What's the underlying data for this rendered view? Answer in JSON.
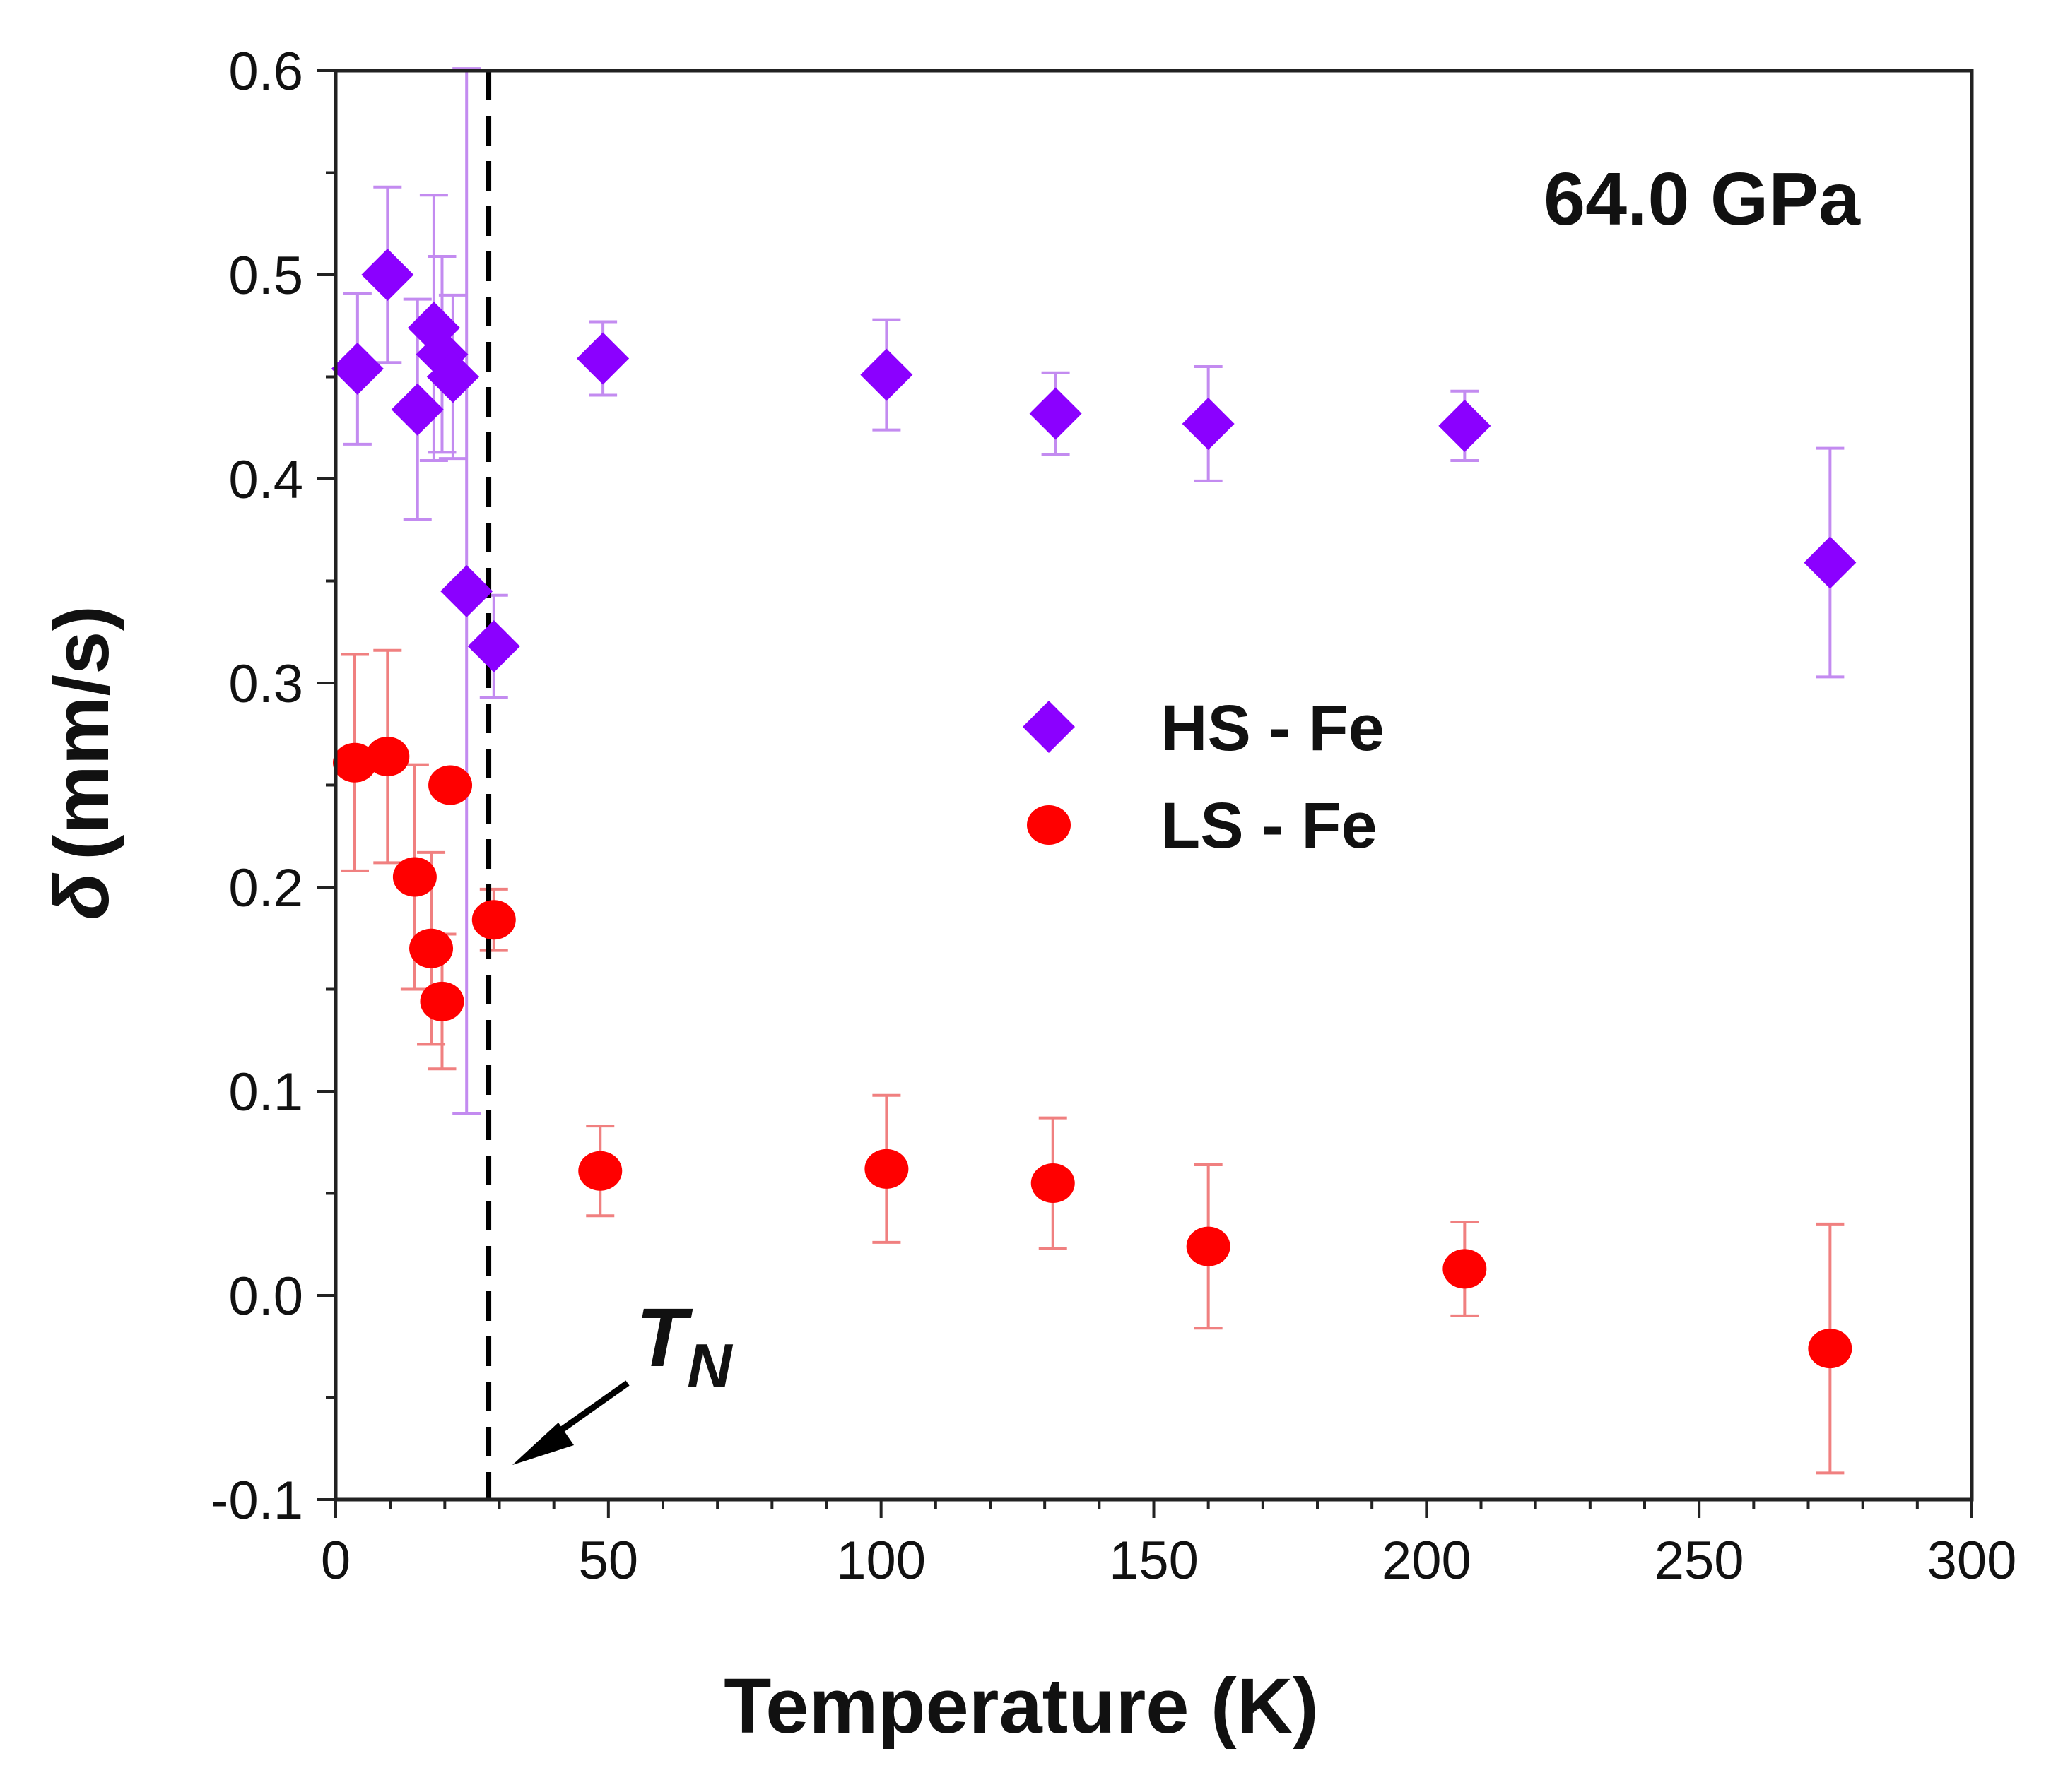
{
  "chart_data": {
    "type": "scatter",
    "title": "",
    "annotation": "64.0 GPa",
    "xlabel": "Temperature (K)",
    "ylabel_symbol": "δ",
    "ylabel_unit": "(mm/s)",
    "xlim": [
      0,
      300
    ],
    "ylim": [
      -0.1,
      0.6
    ],
    "xticks": [
      0,
      50,
      100,
      150,
      200,
      250,
      300
    ],
    "xtick_labels": [
      "0",
      "50",
      "100",
      "150",
      "200",
      "250",
      "300"
    ],
    "yticks": [
      -0.1,
      0.0,
      0.1,
      0.2,
      0.3,
      0.4,
      0.5,
      0.6
    ],
    "ytick_labels": [
      "-0.1",
      "0.0",
      "0.1",
      "0.2",
      "0.3",
      "0.4",
      "0.5",
      "0.6"
    ],
    "grid": false,
    "legend_position": "center",
    "transition": {
      "label": "T",
      "subscript": "N",
      "x": 28
    },
    "series": [
      {
        "name": "HS - Fe",
        "marker": "diamond",
        "color": "#8B00FF",
        "error_color": "#C38BF0",
        "points": [
          {
            "x": 4,
            "y": 0.454,
            "err": 0.037
          },
          {
            "x": 9.5,
            "y": 0.5,
            "err": 0.043
          },
          {
            "x": 15,
            "y": 0.434,
            "err": 0.054
          },
          {
            "x": 18,
            "y": 0.474,
            "err": 0.065
          },
          {
            "x": 19.5,
            "y": 0.461,
            "err": 0.048
          },
          {
            "x": 21.5,
            "y": 0.45,
            "err": 0.04
          },
          {
            "x": 24,
            "y": 0.345,
            "err": 0.256
          },
          {
            "x": 29,
            "y": 0.318,
            "err": 0.025
          },
          {
            "x": 49,
            "y": 0.459,
            "err": 0.018
          },
          {
            "x": 101,
            "y": 0.451,
            "err": 0.027
          },
          {
            "x": 132,
            "y": 0.432,
            "err": 0.02
          },
          {
            "x": 160,
            "y": 0.427,
            "err": 0.028
          },
          {
            "x": 207,
            "y": 0.426,
            "err": 0.017
          },
          {
            "x": 274,
            "y": 0.359,
            "err": 0.056
          }
        ]
      },
      {
        "name": "LS - Fe",
        "marker": "circle",
        "color": "#FF0000",
        "error_color": "#F08080",
        "points": [
          {
            "x": 3.5,
            "y": 0.261,
            "err": 0.053
          },
          {
            "x": 9.5,
            "y": 0.264,
            "err": 0.052
          },
          {
            "x": 14.5,
            "y": 0.205,
            "err": 0.055
          },
          {
            "x": 17.5,
            "y": 0.17,
            "err": 0.047
          },
          {
            "x": 19.5,
            "y": 0.144,
            "err": 0.033
          },
          {
            "x": 21,
            "y": 0.25,
            "err": 0.0
          },
          {
            "x": 29,
            "y": 0.184,
            "err": 0.015
          },
          {
            "x": 48.5,
            "y": 0.061,
            "err": 0.022
          },
          {
            "x": 101,
            "y": 0.062,
            "err": 0.036
          },
          {
            "x": 131.5,
            "y": 0.055,
            "err": 0.032
          },
          {
            "x": 160,
            "y": 0.024,
            "err": 0.04
          },
          {
            "x": 207,
            "y": 0.013,
            "err": 0.023
          },
          {
            "x": 274,
            "y": -0.026,
            "err": 0.061
          }
        ]
      }
    ]
  }
}
